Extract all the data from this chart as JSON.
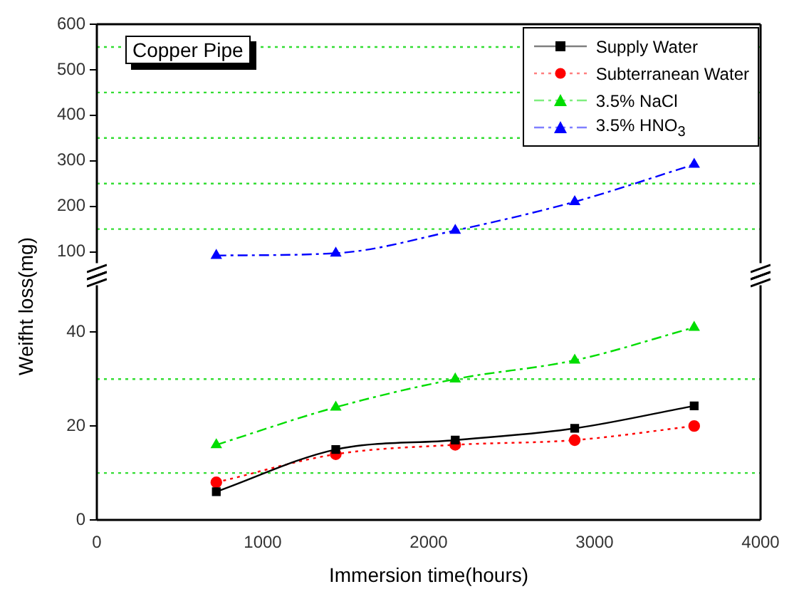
{
  "chart_data": [
    {
      "type": "line",
      "annotations": [
        "Copper Pipe"
      ],
      "xlim": [
        0,
        4000
      ],
      "ylim": [
        75,
        600
      ],
      "yticks": [
        100,
        200,
        300,
        400,
        500,
        600
      ],
      "tick_labels": "y",
      "legend": "top right",
      "ref_lines": [
        {
          "axis": "y",
          "value": 150,
          "color": "#33dd33",
          "line_style": "dotted"
        },
        {
          "axis": "y",
          "value": 250,
          "color": "#33dd33",
          "line_style": "dotted"
        },
        {
          "axis": "y",
          "value": 350,
          "color": "#33dd33",
          "line_style": "dotted"
        },
        {
          "axis": "y",
          "value": 450,
          "color": "#33dd33",
          "line_style": "dotted"
        },
        {
          "axis": "y",
          "value": 550,
          "color": "#33dd33",
          "line_style": "dotted"
        }
      ],
      "series": [
        {
          "name": "3.5% HNO$_{3}$",
          "color": "#0000ff",
          "marker": "triangle",
          "line_style": "dashed",
          "x": [
            720,
            1440,
            2160,
            2880,
            3600
          ],
          "values": [
            92,
            97,
            147,
            210,
            292
          ]
        }
      ]
    },
    {
      "type": "line",
      "xlabel": "Immersion time(hours)",
      "ylabel": "Weifht loss(mg)",
      "xlim": [
        0,
        4000
      ],
      "xticks": [
        0,
        1000,
        2000,
        3000,
        4000
      ],
      "ylim": [
        0,
        50
      ],
      "yticks": [
        0,
        20,
        40
      ],
      "legend": "top right",
      "ref_lines": [
        {
          "axis": "y",
          "value": 10,
          "color": "#33dd33",
          "line_style": "dotted"
        },
        {
          "axis": "y",
          "value": 30,
          "color": "#33dd33",
          "line_style": "dotted"
        }
      ],
      "series": [
        {
          "name": "Supply Water",
          "color": "#000000",
          "marker": "square",
          "line_style": "solid",
          "x": [
            720,
            1440,
            2160,
            2880,
            3600
          ],
          "values": [
            6,
            15,
            17,
            19.5,
            24.3
          ]
        },
        {
          "name": "Subterranean Water",
          "color": "#ff0000",
          "marker": "circle",
          "line_style": "dotted",
          "x": [
            720,
            1440,
            2160,
            2880,
            3600
          ],
          "values": [
            8,
            14,
            16,
            17,
            20
          ]
        },
        {
          "name": "3.5% NaCl",
          "color": "#00dd00",
          "marker": "triangle",
          "line_style": "dashed",
          "x": [
            720,
            1440,
            2160,
            2880,
            3600
          ],
          "values": [
            16,
            24,
            30,
            34,
            41
          ]
        }
      ]
    }
  ]
}
